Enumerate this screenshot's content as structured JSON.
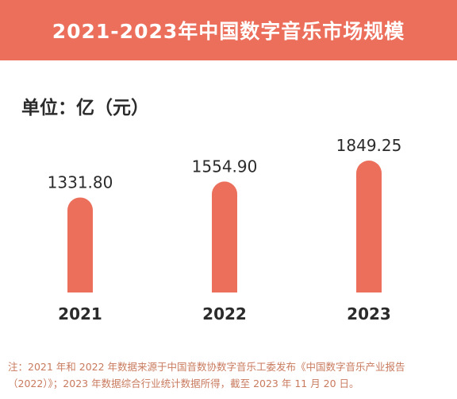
{
  "header": {
    "title": "2021-2023年中国数字音乐市场规模"
  },
  "unit_label": "单位：亿（元）",
  "colors": {
    "header_bg": "#ec6f5c",
    "bar": "#ec6f5c",
    "text": "#2b2b2b",
    "footnote": "#c97a5e"
  },
  "chart_data": {
    "type": "bar",
    "categories": [
      "2021",
      "2022",
      "2023"
    ],
    "values": [
      1331.8,
      1554.9,
      1849.25
    ],
    "value_labels": [
      "1331.80",
      "1554.90",
      "1849.25"
    ],
    "title": "",
    "xlabel": "",
    "ylabel": "",
    "ylim": [
      0,
      1849.25
    ],
    "grid": false,
    "legend": "none"
  },
  "footnote": {
    "line1": "注：2021 年和 2022 年数据来源于中国音数协数字音乐工委发布《中国数字音乐产业报告",
    "line2": "（2022）》；2023 年数据综合行业统计数据所得，截至 2023 年 11 月 20 日。"
  }
}
